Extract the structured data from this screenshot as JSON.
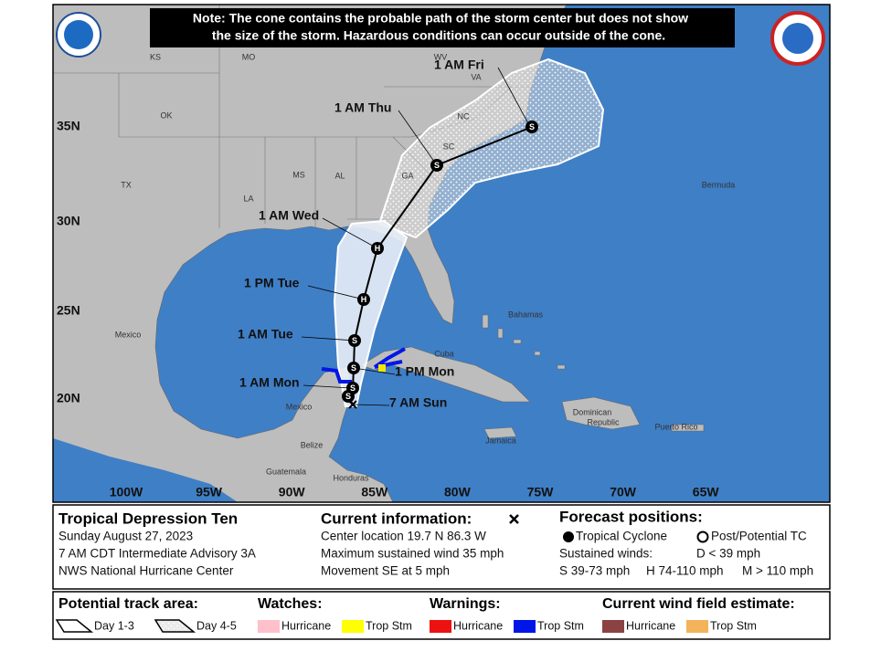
{
  "map": {
    "note": [
      "Note: The cone contains the probable path of the storm center but does not show",
      "the size of the storm. Hazardous conditions can occur outside of the cone."
    ],
    "region_labels": [
      "KS",
      "MO",
      "OK",
      "TX",
      "LA",
      "MS",
      "AL",
      "GA",
      "SC",
      "NC",
      "VA",
      "WV",
      "Bermuda",
      "Mexico",
      "Cuba",
      "Bahamas",
      "Dominican",
      "Republic",
      "Puerto Rico",
      "Jamaica",
      "Belize",
      "Guatemala",
      "Honduras",
      "Mexico"
    ],
    "latitudes": [
      "35N",
      "30N",
      "25N",
      "20N"
    ],
    "longitudes": [
      "100W",
      "95W",
      "90W",
      "85W",
      "80W",
      "75W",
      "70W",
      "65W"
    ],
    "forecast_labels": [
      "1 AM Fri",
      "1 AM Thu",
      "1 AM Wed",
      "1 PM Tue",
      "1 AM Tue",
      "1 PM Mon",
      "1 AM Mon",
      "7 AM Sun"
    ],
    "forecast_symbols": [
      "S",
      "S",
      "H",
      "H",
      "S",
      "S",
      "S",
      "S"
    ]
  },
  "info": {
    "title": "Tropical Depression Ten",
    "lines": [
      "Sunday August 27, 2023",
      "7 AM CDT Intermediate Advisory 3A",
      "NWS National Hurricane Center"
    ]
  },
  "current": {
    "title": "Current information:",
    "lines": [
      "Center location 19.7 N 86.3 W",
      "Maximum sustained wind 35 mph",
      "Movement SE at 5 mph"
    ]
  },
  "forecast": {
    "title": "Forecast positions:",
    "tropical": "Tropical Cyclone",
    "post": "Post/Potential TC",
    "sustained": "Sustained winds:",
    "d": "D < 39 mph",
    "s": "S 39-73 mph",
    "h": "H 74-110 mph",
    "m": "M > 110 mph"
  },
  "legend": {
    "track_title": "Potential track area:",
    "day13": "Day 1-3",
    "day45": "Day 4-5",
    "watches_title": "Watches:",
    "watches": [
      "Hurricane",
      "Trop Stm"
    ],
    "warnings_title": "Warnings:",
    "warnings": [
      "Hurricane",
      "Trop Stm"
    ],
    "wind_title": "Current wind field estimate:",
    "wind": [
      "Hurricane",
      "Trop Stm"
    ]
  }
}
